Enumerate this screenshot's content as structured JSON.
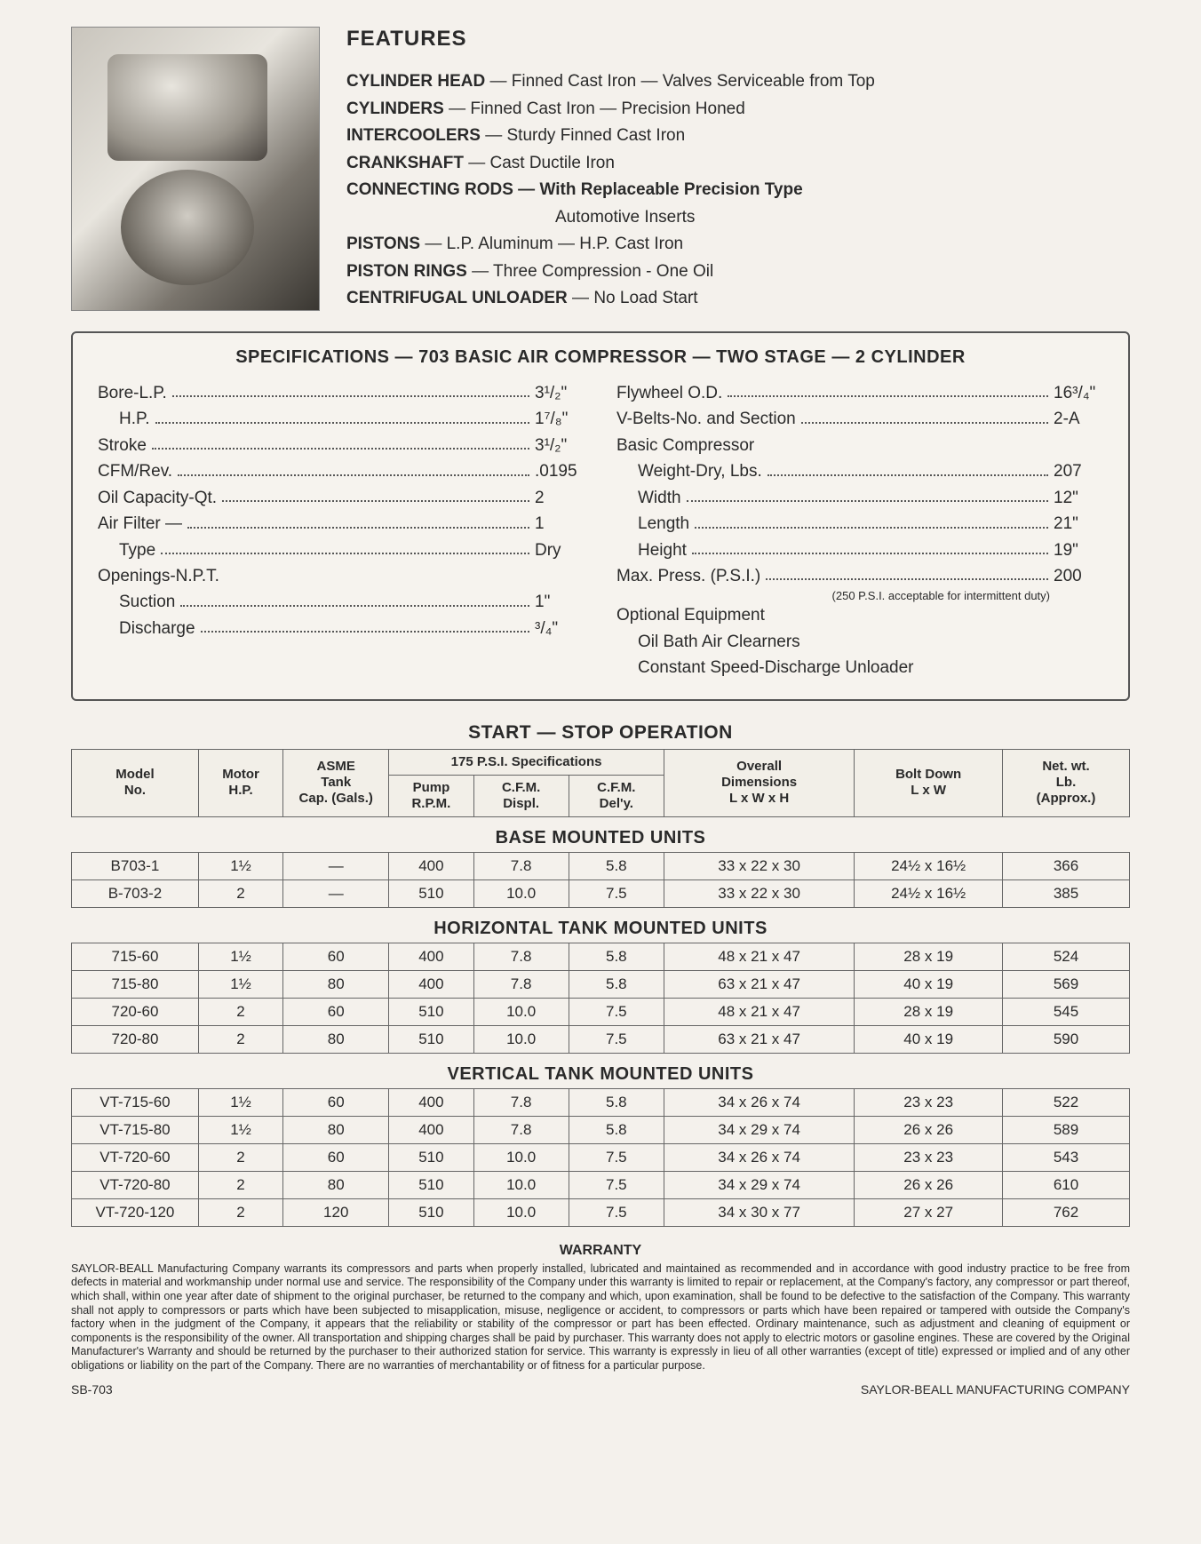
{
  "features": {
    "title": "FEATURES",
    "lines": [
      {
        "label": "CYLINDER HEAD",
        "text": " — Finned Cast Iron — Valves Serviceable from Top"
      },
      {
        "label": "CYLINDERS",
        "text": " — Finned Cast Iron — Precision Honed"
      },
      {
        "label": "INTERCOOLERS",
        "text": " — Sturdy Finned Cast Iron"
      },
      {
        "label": "CRANKSHAFT",
        "text": " — Cast Ductile Iron"
      },
      {
        "label": "CONNECTING RODS",
        "text": " — With Replaceable Precision Type",
        "bold_text": true
      },
      {
        "sub": "Automotive Inserts"
      },
      {
        "label": "PISTONS",
        "text": " — L.P. Aluminum — H.P. Cast Iron"
      },
      {
        "label": "PISTON RINGS",
        "text": " — Three Compression - One Oil"
      },
      {
        "label": "CENTRIFUGAL UNLOADER",
        "text": " — No Load Start"
      }
    ]
  },
  "spec_title": "SPECIFICATIONS — 703 BASIC AIR COMPRESSOR — TWO STAGE — 2 CYLINDER",
  "spec_left": [
    {
      "label": "Bore-L.P.",
      "value": "3¹/₂\""
    },
    {
      "label": "H.P.",
      "value": "1⁷/₈\"",
      "indent": 1
    },
    {
      "label": "Stroke",
      "value": "3¹/₂\""
    },
    {
      "label": "CFM/Rev.",
      "value": ".0195"
    },
    {
      "label": "Oil Capacity-Qt.",
      "value": "2"
    },
    {
      "label": "Air Filter —",
      "value": "1"
    },
    {
      "label": "Type",
      "value": "Dry",
      "indent": 1
    },
    {
      "label": "Openings-N.P.T.",
      "nodots": true
    },
    {
      "label": "Suction",
      "value": "1\"",
      "indent": 1
    },
    {
      "label": "Discharge",
      "value": "³/₄\"",
      "indent": 1
    }
  ],
  "spec_right": [
    {
      "label": "Flywheel O.D.",
      "value": "16³/₄\""
    },
    {
      "label": "V-Belts-No. and Section",
      "value": "2-A"
    },
    {
      "label": "Basic Compressor",
      "nodots": true
    },
    {
      "label": "Weight-Dry, Lbs.",
      "value": "207",
      "indent": 1
    },
    {
      "label": "Width",
      "value": "12\"",
      "indent": 1
    },
    {
      "label": "Length",
      "value": "21\"",
      "indent": 1
    },
    {
      "label": "Height",
      "value": "19\"",
      "indent": 1
    },
    {
      "label": "Max. Press. (P.S.I.)",
      "value": "200"
    },
    {
      "note": "(250 P.S.I. acceptable for intermittent duty)"
    },
    {
      "label": "Optional Equipment",
      "nodots": true
    },
    {
      "label": "Oil Bath Air Clearners",
      "nodots": true,
      "indent": 1
    },
    {
      "label": "Constant Speed-Discharge Unloader",
      "nodots": true,
      "indent": 1
    }
  ],
  "start_stop": "START — STOP OPERATION",
  "table_header": {
    "span_175": "175 P.S.I. Specifications",
    "cols": [
      {
        "l1": "Model",
        "l2": "No."
      },
      {
        "l1": "Motor",
        "l2": "H.P."
      },
      {
        "l1": "ASME",
        "l2": "Tank",
        "l3": "Cap. (Gals.)"
      },
      {
        "l1": "Pump",
        "l2": "R.P.M."
      },
      {
        "l1": "C.F.M.",
        "l2": "Displ."
      },
      {
        "l1": "C.F.M.",
        "l2": "Del'y."
      },
      {
        "l1": "Overall",
        "l2": "Dimensions",
        "l3": "L x W x H"
      },
      {
        "l1": "Bolt Down",
        "l2": "L x W"
      },
      {
        "l1": "Net. wt.",
        "l2": "Lb.",
        "l3": "(Approx.)"
      }
    ]
  },
  "sections": [
    {
      "title": "BASE MOUNTED UNITS",
      "rows": [
        [
          "B703-1",
          "1½",
          "—",
          "400",
          "7.8",
          "5.8",
          "33 x 22 x 30",
          "24½ x 16½",
          "366"
        ],
        [
          "B-703-2",
          "2",
          "—",
          "510",
          "10.0",
          "7.5",
          "33 x 22 x 30",
          "24½ x 16½",
          "385"
        ]
      ]
    },
    {
      "title": "HORIZONTAL TANK MOUNTED UNITS",
      "rows": [
        [
          "715-60",
          "1½",
          "60",
          "400",
          "7.8",
          "5.8",
          "48 x 21 x 47",
          "28 x 19",
          "524"
        ],
        [
          "715-80",
          "1½",
          "80",
          "400",
          "7.8",
          "5.8",
          "63 x 21 x 47",
          "40 x 19",
          "569"
        ],
        [
          "720-60",
          "2",
          "60",
          "510",
          "10.0",
          "7.5",
          "48 x 21 x 47",
          "28 x 19",
          "545"
        ],
        [
          "720-80",
          "2",
          "80",
          "510",
          "10.0",
          "7.5",
          "63 x 21 x 47",
          "40 x 19",
          "590"
        ]
      ]
    },
    {
      "title": "VERTICAL TANK MOUNTED UNITS",
      "rows": [
        [
          "VT-715-60",
          "1½",
          "60",
          "400",
          "7.8",
          "5.8",
          "34 x 26 x 74",
          "23 x 23",
          "522"
        ],
        [
          "VT-715-80",
          "1½",
          "80",
          "400",
          "7.8",
          "5.8",
          "34 x 29 x 74",
          "26 x 26",
          "589"
        ],
        [
          "VT-720-60",
          "2",
          "60",
          "510",
          "10.0",
          "7.5",
          "34 x 26 x 74",
          "23 x 23",
          "543"
        ],
        [
          "VT-720-80",
          "2",
          "80",
          "510",
          "10.0",
          "7.5",
          "34 x 29 x 74",
          "26 x 26",
          "610"
        ],
        [
          "VT-720-120",
          "2",
          "120",
          "510",
          "10.0",
          "7.5",
          "34 x 30 x 77",
          "27 x 27",
          "762"
        ]
      ]
    }
  ],
  "warranty": {
    "title": "WARRANTY",
    "text": "SAYLOR-BEALL Manufacturing Company warrants its compressors and parts when properly installed, lubricated and maintained as recommended and in accordance with good industry practice to be free from defects in material and workmanship under normal use and service. The responsibility of the Company under this warranty is limited to repair or replacement, at the Company's factory, any compressor or part thereof, which shall, within one year after date of shipment to the original purchaser, be returned to the company and which, upon examination, shall be found to be defective to the satisfaction of the Company. This warranty shall not apply to compressors or parts which have been subjected to misapplication, misuse, negligence or accident, to compressors or parts which have been repaired or tampered with outside the Company's factory when in the judgment of the Company, it appears that the reliability or stability of the compressor or part has been effected. Ordinary maintenance, such as adjustment and cleaning of equipment or components is the responsibility of the owner. All transportation and shipping charges shall be paid by purchaser. This warranty does not apply to electric motors or gasoline engines. These are covered by the Original Manufacturer's Warranty and should be returned by the purchaser to their authorized station for service. This warranty is expressly in lieu of all other warranties (except of title) expressed or implied and of any other obligations or liability on the part of the Company. There are no warranties of merchantability or of fitness for a particular purpose."
  },
  "footer_left": "SB-703",
  "footer_right": "SAYLOR-BEALL MANUFACTURING COMPANY",
  "col_widths": [
    "12%",
    "8%",
    "10%",
    "8%",
    "9%",
    "9%",
    "18%",
    "14%",
    "12%"
  ]
}
